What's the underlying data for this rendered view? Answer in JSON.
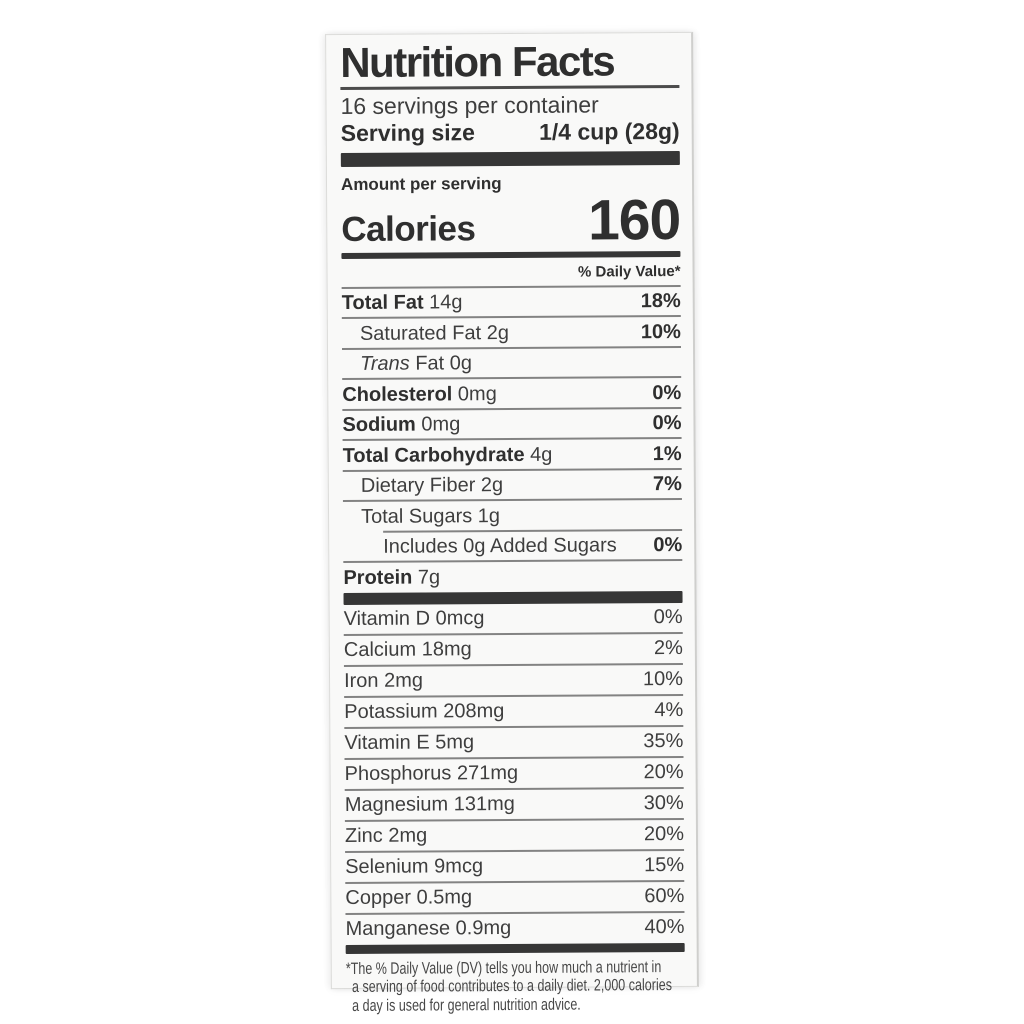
{
  "colors": {
    "page_bg": "#ffffff",
    "label_bg": "#f9f9f8",
    "text": "#3e3e3e",
    "heavy_text": "#2f2f2f",
    "bar": "#363636",
    "rule": "#6e6e6e",
    "edge": "#dcdcda"
  },
  "label": {
    "title": "Nutrition Facts",
    "servings_per_container": "16 servings per container",
    "serving_size_label": "Serving size",
    "serving_size_value": "1/4 cup (28g)",
    "amount_per_serving": "Amount per serving",
    "calories_label": "Calories",
    "calories_value": "160",
    "daily_value_header": "% Daily Value*",
    "nutrients": [
      {
        "name": "Total Fat",
        "amount": "14g",
        "dv": "18%"
      },
      {
        "name": "Saturated Fat",
        "amount": "2g",
        "dv": "10%"
      },
      {
        "name_italic": "Trans",
        "name": "Fat",
        "amount": "0g",
        "dv": ""
      },
      {
        "name": "Cholesterol",
        "amount": "0mg",
        "dv": "0%"
      },
      {
        "name": "Sodium",
        "amount": "0mg",
        "dv": "0%"
      },
      {
        "name": "Total Carbohydrate",
        "amount": "4g",
        "dv": "1%"
      },
      {
        "name": "Dietary Fiber",
        "amount": "2g",
        "dv": "7%"
      },
      {
        "name": "Total Sugars",
        "amount": "1g",
        "dv": ""
      },
      {
        "name": "Includes 0g Added Sugars",
        "amount": "",
        "dv": "0%"
      },
      {
        "name": "Protein",
        "amount": "7g",
        "dv": ""
      }
    ],
    "micronutrients": [
      {
        "name": "Vitamin D",
        "amount": "0mcg",
        "dv": "0%"
      },
      {
        "name": "Calcium",
        "amount": "18mg",
        "dv": "2%"
      },
      {
        "name": "Iron",
        "amount": "2mg",
        "dv": "10%"
      },
      {
        "name": "Potassium",
        "amount": "208mg",
        "dv": "4%"
      },
      {
        "name": "Vitamin E",
        "amount": "5mg",
        "dv": "35%"
      },
      {
        "name": "Phosphorus",
        "amount": "271mg",
        "dv": "20%"
      },
      {
        "name": "Magnesium",
        "amount": "131mg",
        "dv": "30%"
      },
      {
        "name": "Zinc",
        "amount": "2mg",
        "dv": "20%"
      },
      {
        "name": "Selenium",
        "amount": "9mcg",
        "dv": "15%"
      },
      {
        "name": "Copper",
        "amount": "0.5mg",
        "dv": "60%"
      },
      {
        "name": "Manganese",
        "amount": "0.9mg",
        "dv": "40%"
      }
    ],
    "footnote_asterisk": "*",
    "footnote_lines": [
      "The % Daily Value (DV) tells you how much a nutrient in",
      "a serving of food contributes to a daily diet. 2,000 calories",
      "a day is used for general nutrition advice."
    ]
  }
}
